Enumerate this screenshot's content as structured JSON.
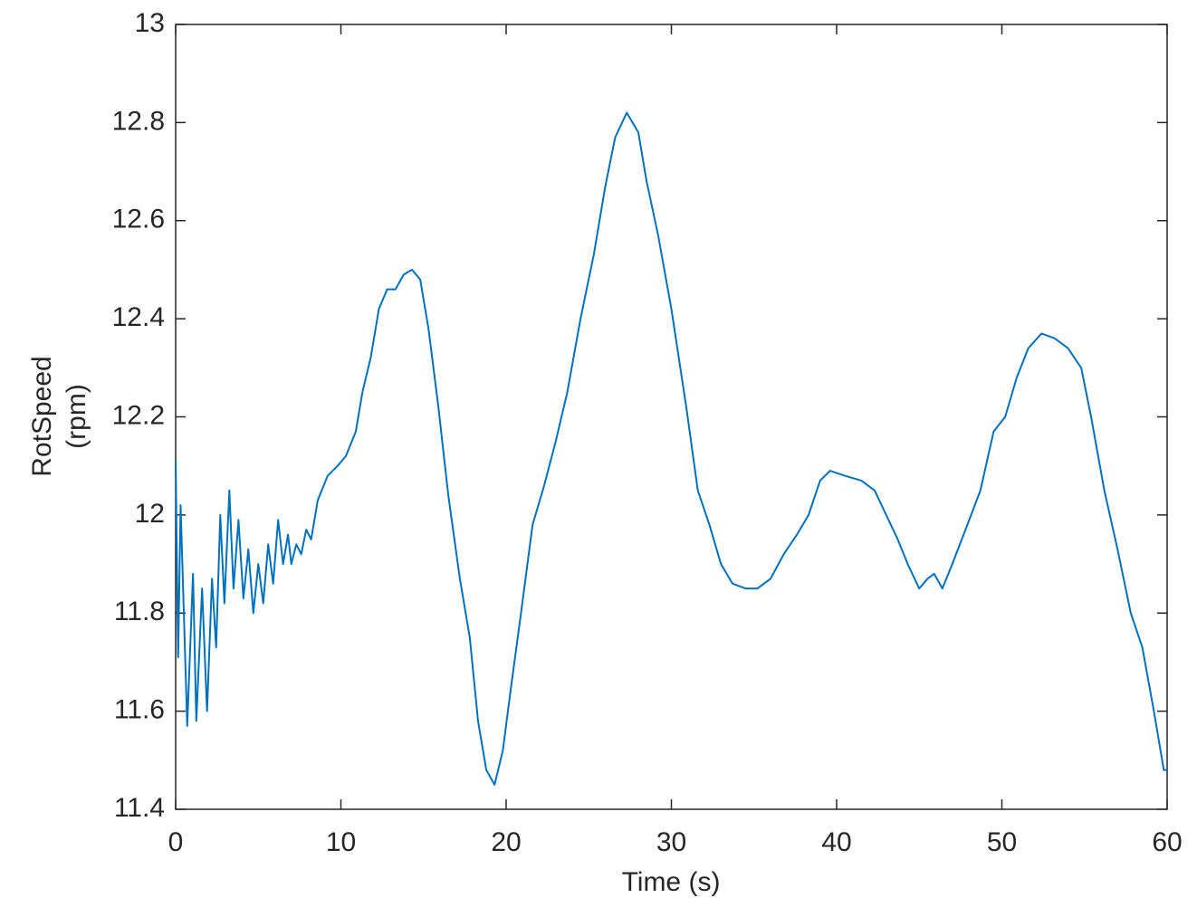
{
  "chart_data": {
    "type": "line",
    "xlabel": "Time (s)",
    "ylabel": [
      "RotSpeed",
      "(rpm)"
    ],
    "xlim": [
      0,
      60
    ],
    "ylim": [
      11.4,
      13
    ],
    "xticks": [
      0,
      10,
      20,
      30,
      40,
      50,
      60
    ],
    "yticks": [
      11.4,
      11.6,
      11.8,
      12,
      12.2,
      12.4,
      12.6,
      12.8,
      13
    ],
    "grid": false,
    "series": [
      {
        "color": "#0072bd",
        "x": [
          0,
          0.15,
          0.3,
          0.7,
          1.05,
          1.25,
          1.6,
          1.9,
          2.2,
          2.45,
          2.7,
          2.95,
          3.25,
          3.5,
          3.8,
          4.1,
          4.4,
          4.7,
          5.0,
          5.3,
          5.6,
          5.9,
          6.2,
          6.5,
          6.8,
          7.0,
          7.3,
          7.6,
          7.9,
          8.2,
          8.6,
          9.2,
          9.8,
          10.3,
          10.9,
          11.3,
          11.8,
          12.3,
          12.8,
          13.3,
          13.8,
          14.3,
          14.8,
          15.3,
          15.9,
          16.5,
          17.2,
          17.8,
          18.3,
          18.8,
          19.3,
          19.8,
          20.3,
          20.9,
          21.6,
          22.3,
          23.0,
          23.7,
          24.5,
          25.3,
          26.0,
          26.6,
          27.3,
          28.0,
          28.5,
          29.2,
          30.0,
          30.9,
          31.6,
          32.3,
          33.0,
          33.7,
          34.5,
          35.2,
          36.0,
          36.8,
          37.6,
          38.3,
          39.0,
          39.6,
          40.5,
          41.5,
          42.3,
          43.0,
          43.7,
          44.3,
          45.0,
          45.5,
          45.9,
          46.4,
          47.0,
          47.8,
          48.7,
          49.5,
          50.2,
          50.9,
          51.6,
          52.4,
          53.2,
          54.0,
          54.8,
          55.4,
          56.2,
          57.0,
          57.8,
          58.5,
          59.2,
          59.8,
          60
        ],
        "values": [
          12.11,
          11.71,
          12.02,
          11.57,
          11.88,
          11.58,
          11.85,
          11.6,
          11.87,
          11.73,
          12.0,
          11.82,
          12.05,
          11.85,
          11.99,
          11.83,
          11.93,
          11.8,
          11.9,
          11.82,
          11.94,
          11.86,
          11.99,
          11.9,
          11.96,
          11.9,
          11.94,
          11.92,
          11.97,
          11.95,
          12.03,
          12.08,
          12.1,
          12.12,
          12.17,
          12.25,
          12.32,
          12.42,
          12.46,
          12.46,
          12.49,
          12.5,
          12.48,
          12.38,
          12.22,
          12.04,
          11.87,
          11.75,
          11.58,
          11.48,
          11.45,
          11.52,
          11.65,
          11.8,
          11.98,
          12.06,
          12.15,
          12.25,
          12.4,
          12.53,
          12.67,
          12.77,
          12.82,
          12.78,
          12.68,
          12.57,
          12.42,
          12.22,
          12.05,
          11.98,
          11.9,
          11.86,
          11.85,
          11.85,
          11.87,
          11.92,
          11.96,
          12.0,
          12.07,
          12.09,
          12.08,
          12.07,
          12.05,
          12.0,
          11.95,
          11.9,
          11.85,
          11.87,
          11.88,
          11.85,
          11.9,
          11.97,
          12.05,
          12.17,
          12.2,
          12.28,
          12.34,
          12.37,
          12.36,
          12.34,
          12.3,
          12.2,
          12.05,
          11.93,
          11.8,
          11.73,
          11.6,
          11.48,
          11.48
        ]
      }
    ]
  }
}
